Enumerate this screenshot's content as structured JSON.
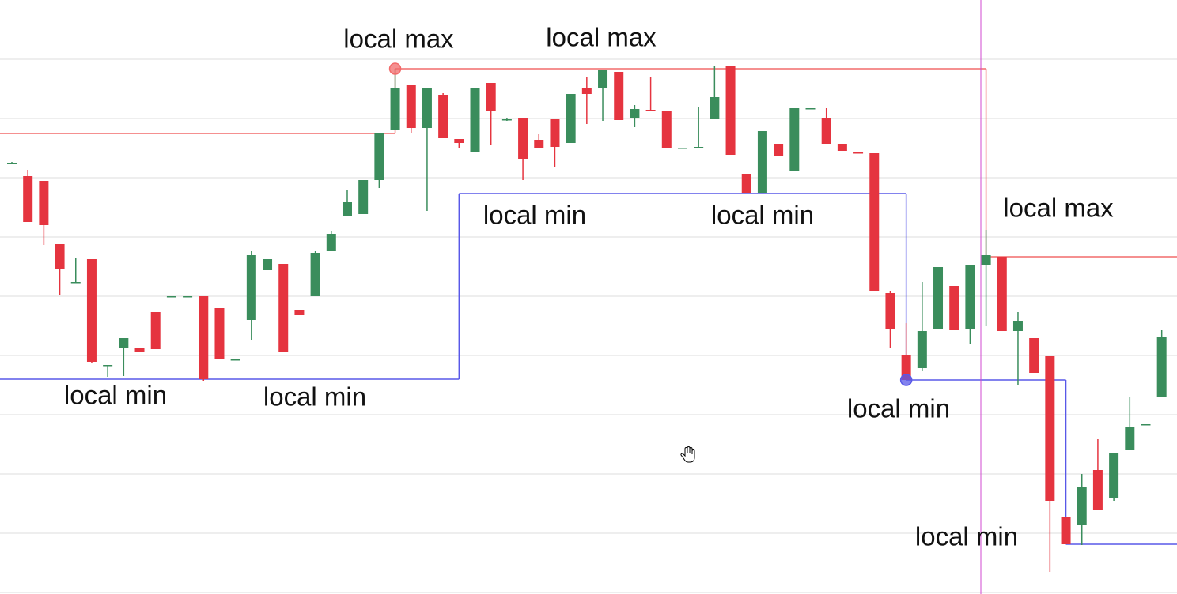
{
  "chart_data": {
    "type": "candlestick",
    "open": [
      594,
      577,
      571,
      491,
      443,
      472,
      338,
      360,
      360,
      405,
      425,
      425,
      425,
      410,
      345,
      395,
      458,
      466,
      407,
      425,
      482,
      527,
      529,
      572,
      635,
      692,
      638,
      680,
      624,
      607,
      695,
      649,
      650,
      623,
      649,
      619,
      688,
      688,
      709,
      650,
      661,
      660,
      613,
      613,
      649,
      716,
      580,
      556,
      618,
      583,
      663,
      650,
      618,
      607,
      606,
      429,
      351,
      334,
      383,
      438,
      383,
      465,
      475,
      381,
      372,
      349,
      145,
      135,
      205,
      170,
      230,
      263,
      298
    ],
    "high": [
      595,
      585,
      571,
      491,
      474,
      472,
      338,
      372,
      360,
      405,
      425,
      425,
      425,
      410,
      345,
      482,
      472,
      466,
      407,
      482,
      507,
      559,
      572,
      631,
      713,
      692,
      688,
      682,
      624,
      688,
      695,
      650,
      650,
      630,
      649,
      681,
      702,
      712,
      709,
      667,
      702,
      660,
      613,
      665,
      716,
      716,
      580,
      634,
      618,
      663,
      663,
      663,
      618,
      607,
      606,
      432,
      391,
      443,
      462,
      438,
      464,
      509,
      475,
      405,
      372,
      349,
      145,
      200,
      244,
      227,
      297,
      263,
      382
    ],
    "low": [
      593,
      519,
      490,
      427,
      442,
      340,
      323,
      324,
      354,
      358,
      425,
      425,
      318,
      345,
      345,
      370,
      458,
      354,
      401,
      425,
      482,
      527,
      529,
      562,
      635,
      631,
      533,
      625,
      612,
      607,
      617,
      647,
      572,
      612,
      588,
      619,
      643,
      647,
      648,
      639,
      660,
      613,
      613,
      613,
      649,
      604,
      556,
      556,
      602,
      583,
      663,
      618,
      609,
      606,
      432,
      360,
      319,
      330,
      383,
      382,
      364,
      387,
      381,
      313,
      328,
      76,
      111,
      110,
      154,
      166,
      230,
      263,
      298
    ],
    "close": [
      594,
      519,
      515,
      459,
      443,
      342,
      338,
      372,
      354,
      358,
      425,
      425,
      320,
      345,
      345,
      477,
      472,
      354,
      401,
      480,
      504,
      544,
      572,
      631,
      689,
      638,
      688,
      625,
      619,
      688,
      660,
      649,
      599,
      612,
      614,
      681,
      681,
      712,
      648,
      662,
      660,
      613,
      613,
      614,
      677,
      604,
      556,
      634,
      602,
      663,
      663,
      618,
      609,
      606,
      432,
      383,
      319,
      381,
      462,
      382,
      464,
      477,
      381,
      394,
      328,
      166,
      111,
      184,
      154,
      227,
      259,
      263,
      373
    ],
    "up_color": "#3a8d5c",
    "down_color": "#e5343f",
    "ylim": [
      48,
      800
    ],
    "yticks": [
      725,
      650,
      575,
      500,
      425,
      350,
      275,
      200,
      125,
      50
    ],
    "grid": true,
    "levels": [
      {
        "color": "#f26b6b",
        "steps": [
          {
            "start": 0,
            "value": 631
          },
          {
            "start": 24,
            "value": 713
          },
          {
            "start": 61,
            "value": 475
          }
        ],
        "marker": {
          "index": 24,
          "field": "high"
        }
      },
      {
        "color": "#5858e8",
        "steps": [
          {
            "start": 0,
            "value": 320
          },
          {
            "start": 28,
            "value": 555
          },
          {
            "start": 56,
            "value": 319
          },
          {
            "start": 66,
            "value": 111
          }
        ],
        "marker": {
          "index": 56,
          "field": "low"
        }
      }
    ],
    "annotations": [
      "local max",
      "local max",
      "local min",
      "local min",
      "local max",
      "local min",
      "local min",
      "local min",
      "local min"
    ]
  }
}
